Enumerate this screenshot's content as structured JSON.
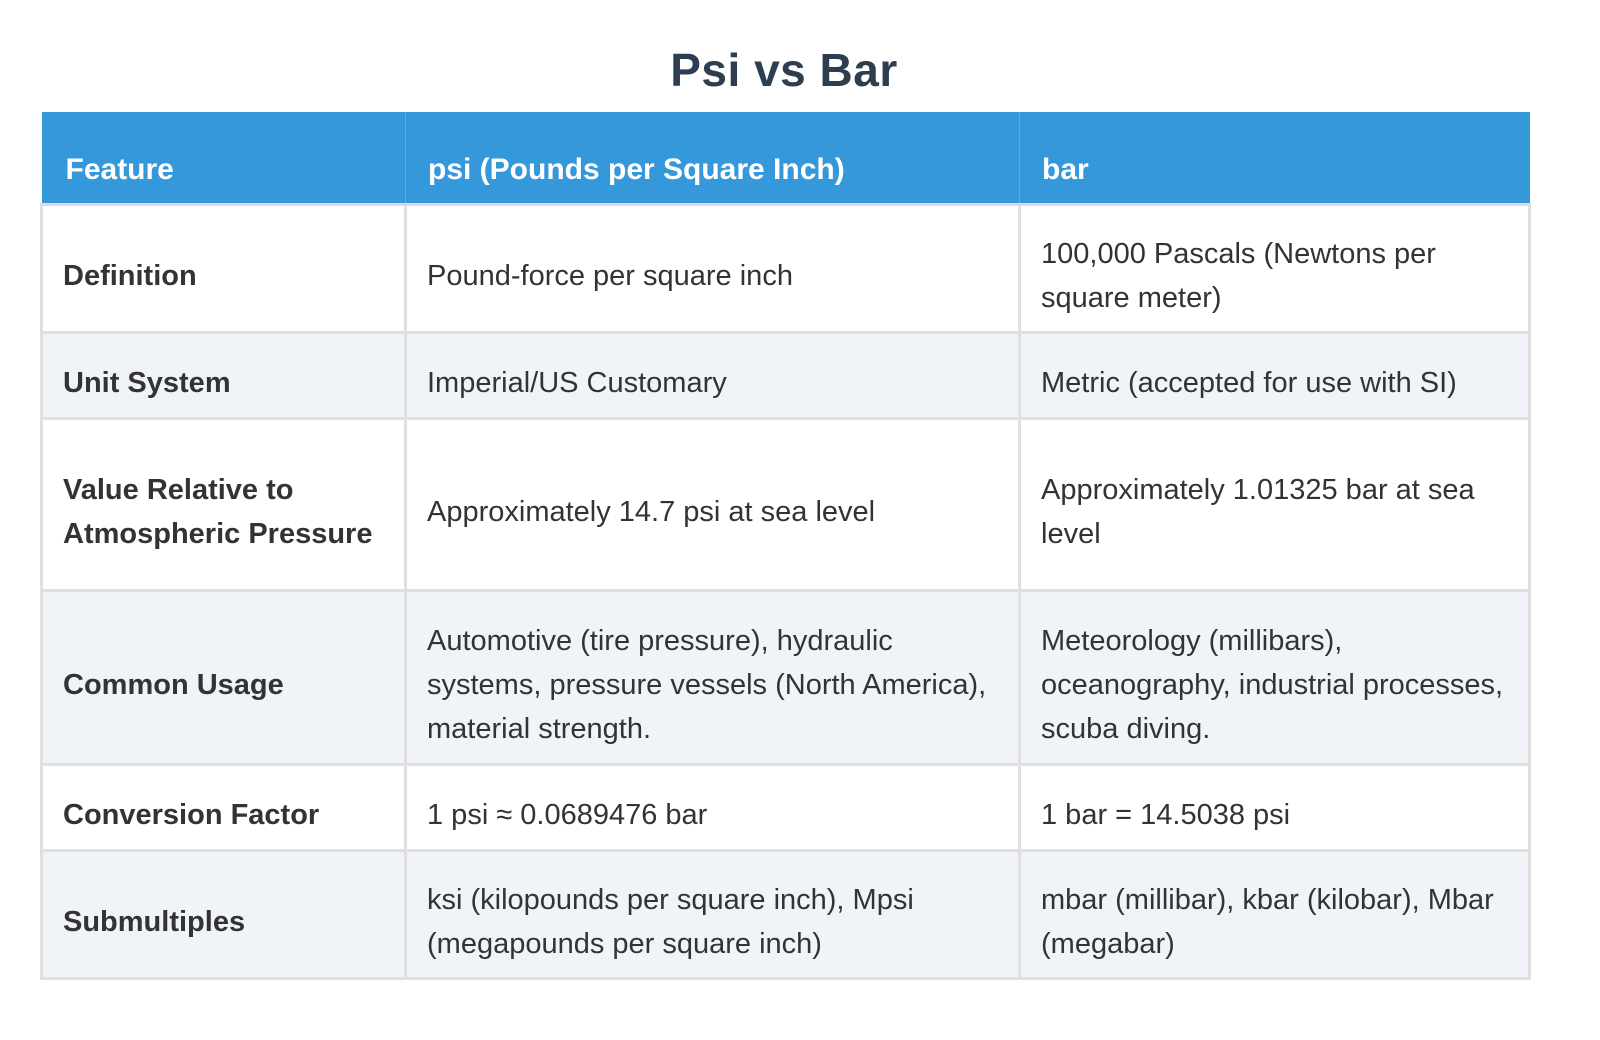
{
  "title": "Psi vs Bar",
  "colors": {
    "header_bg": "#3498db",
    "header_text": "#ffffff",
    "title_text": "#2c3e50",
    "body_text": "#333333",
    "row_alt_bg": "#f0f4f9",
    "border": "#e0e0e0"
  },
  "table": {
    "headers": [
      "Feature",
      "psi (Pounds per Square Inch)",
      "bar"
    ],
    "rows": [
      {
        "feature": "Definition",
        "psi": "Pound-force per square inch",
        "bar": "100,000 Pascals (Newtons per square meter)"
      },
      {
        "feature": "Unit System",
        "psi": "Imperial/US Customary",
        "bar": "Metric (accepted for use with SI)"
      },
      {
        "feature": "Value Relative to Atmospheric Pressure",
        "psi": "Approximately 14.7 psi at sea level",
        "bar": "Approximately 1.01325 bar at sea level"
      },
      {
        "feature": "Common Usage",
        "psi": "Automotive (tire pressure), hydraulic systems, pressure vessels (North America), material strength.",
        "bar": "Meteorology (millibars), oceanography, industrial processes, scuba diving."
      },
      {
        "feature": "Conversion Factor",
        "psi": "1 psi ≈ 0.0689476 bar",
        "bar": "1 bar = 14.5038 psi"
      },
      {
        "feature": "Submultiples",
        "psi": "ksi (kilopounds per square inch), Mpsi (megapounds per square inch)",
        "bar": "mbar (millibar), kbar (kilobar), Mbar (megabar)"
      }
    ]
  }
}
